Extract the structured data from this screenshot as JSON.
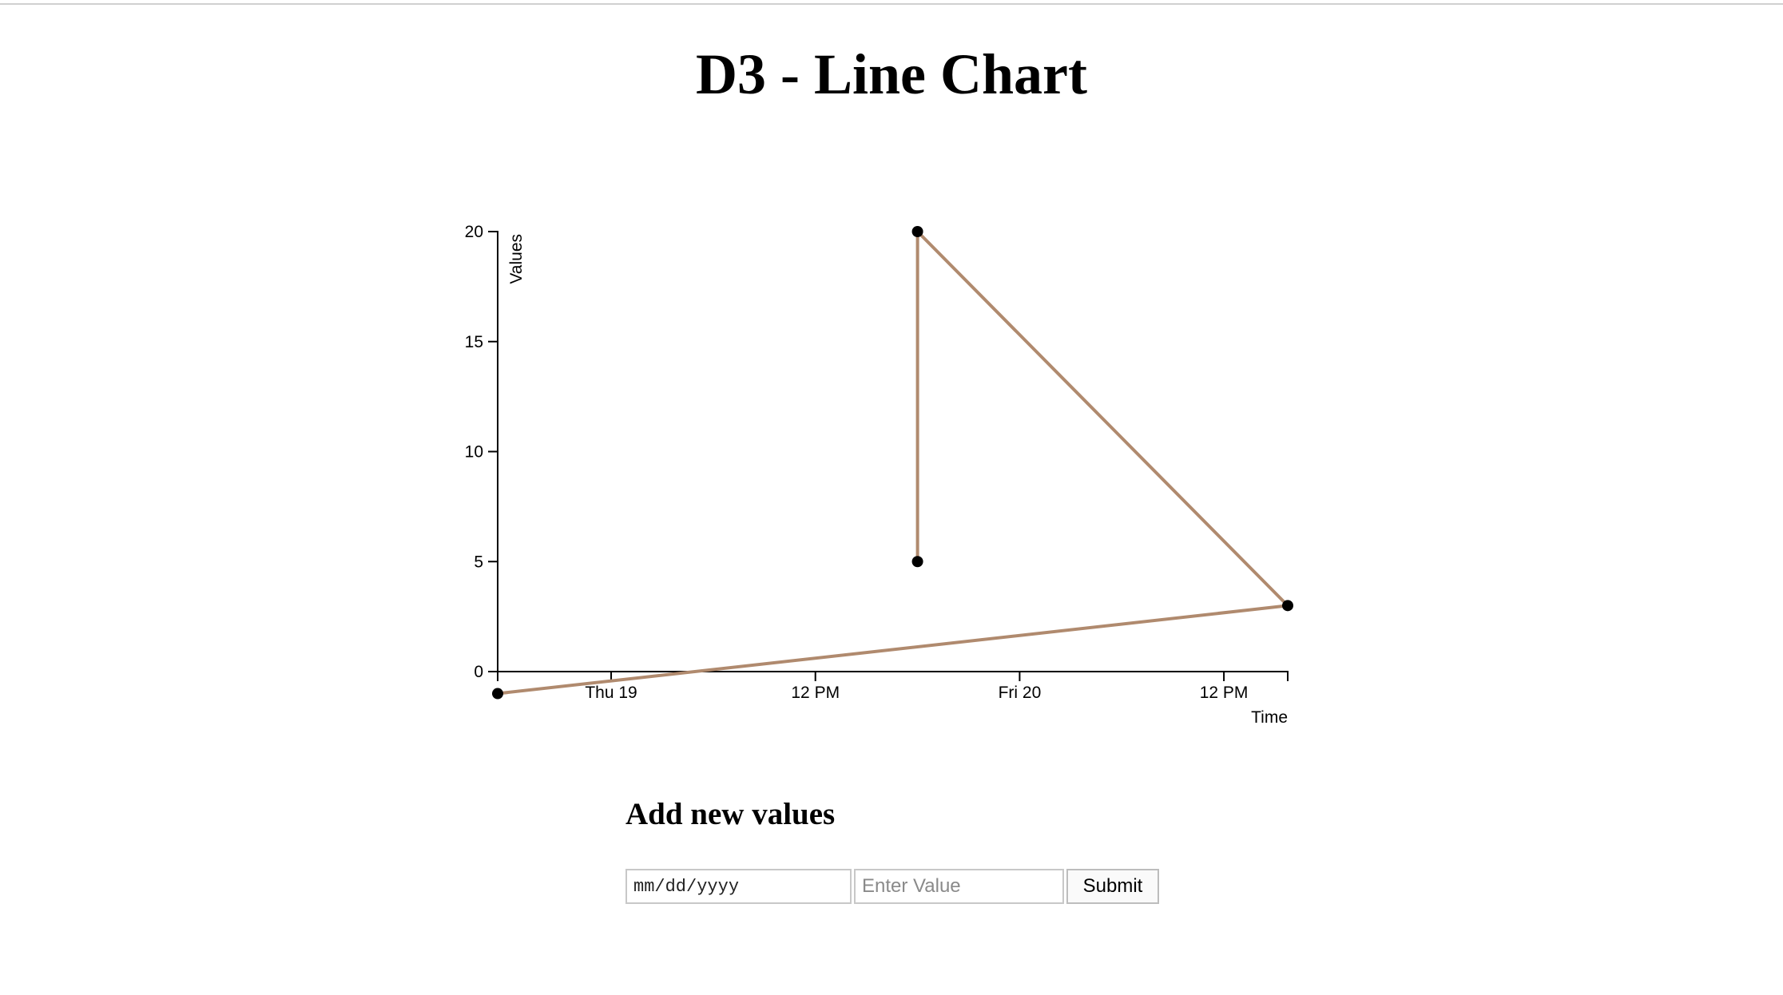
{
  "page": {
    "title": "D3 - Line Chart"
  },
  "chart_data": {
    "type": "line",
    "title": "D3 - Line Chart",
    "xlabel": "Time",
    "ylabel": "Values",
    "x_scale": "time",
    "xlim": [
      "2017-01-18T17:20",
      "2017-01-20T15:45"
    ],
    "ylim": [
      0,
      20
    ],
    "x_ticks": [
      {
        "at": "2017-01-19T00:00",
        "label": "Thu 19"
      },
      {
        "at": "2017-01-19T12:00",
        "label": "12 PM"
      },
      {
        "at": "2017-01-20T00:00",
        "label": "Fri 20"
      },
      {
        "at": "2017-01-20T12:00",
        "label": "12 PM"
      }
    ],
    "y_ticks": [
      0,
      5,
      10,
      15,
      20
    ],
    "series": [
      {
        "color": "#b08a6e",
        "marker_color": "#000000",
        "points": [
          {
            "x": "2017-01-19T18:00",
            "y": 5
          },
          {
            "x": "2017-01-19T18:00",
            "y": 20
          },
          {
            "x": "2017-01-20T15:45",
            "y": 3
          },
          {
            "x": "2017-01-18T17:20",
            "y": -1
          }
        ]
      }
    ],
    "grid": false,
    "legend": "none"
  },
  "form": {
    "heading": "Add new values",
    "date_placeholder": "mm/dd/yyyy",
    "value_placeholder": "Enter Value",
    "submit_label": "Submit"
  }
}
